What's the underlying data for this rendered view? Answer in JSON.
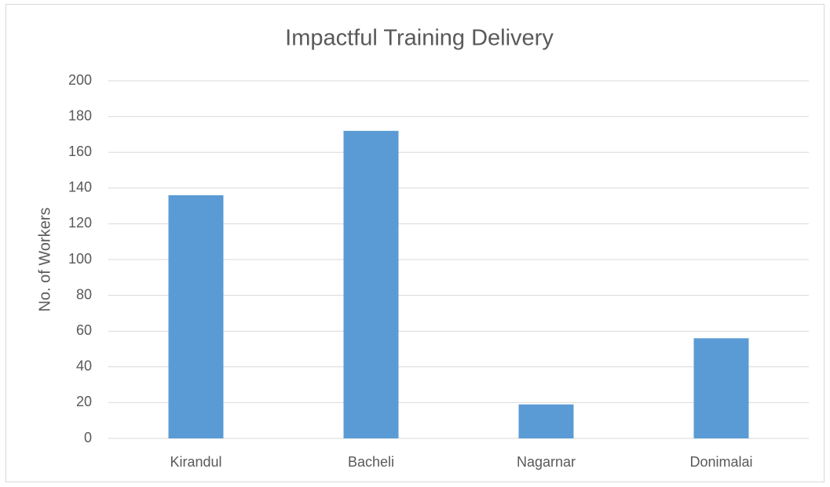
{
  "chart_data": {
    "type": "bar",
    "title": "Impactful Training Delivery",
    "y_label": "No. of Workers",
    "categories": [
      "Kirandul",
      "Bacheli",
      "Nagarnar",
      "Donimalai"
    ],
    "values": [
      136,
      172,
      19,
      56
    ],
    "color": "#5b9bd5",
    "ylim": [
      0,
      200
    ],
    "yticks": [
      0,
      20,
      40,
      60,
      80,
      100,
      120,
      140,
      160,
      180,
      200
    ],
    "grid": true
  }
}
